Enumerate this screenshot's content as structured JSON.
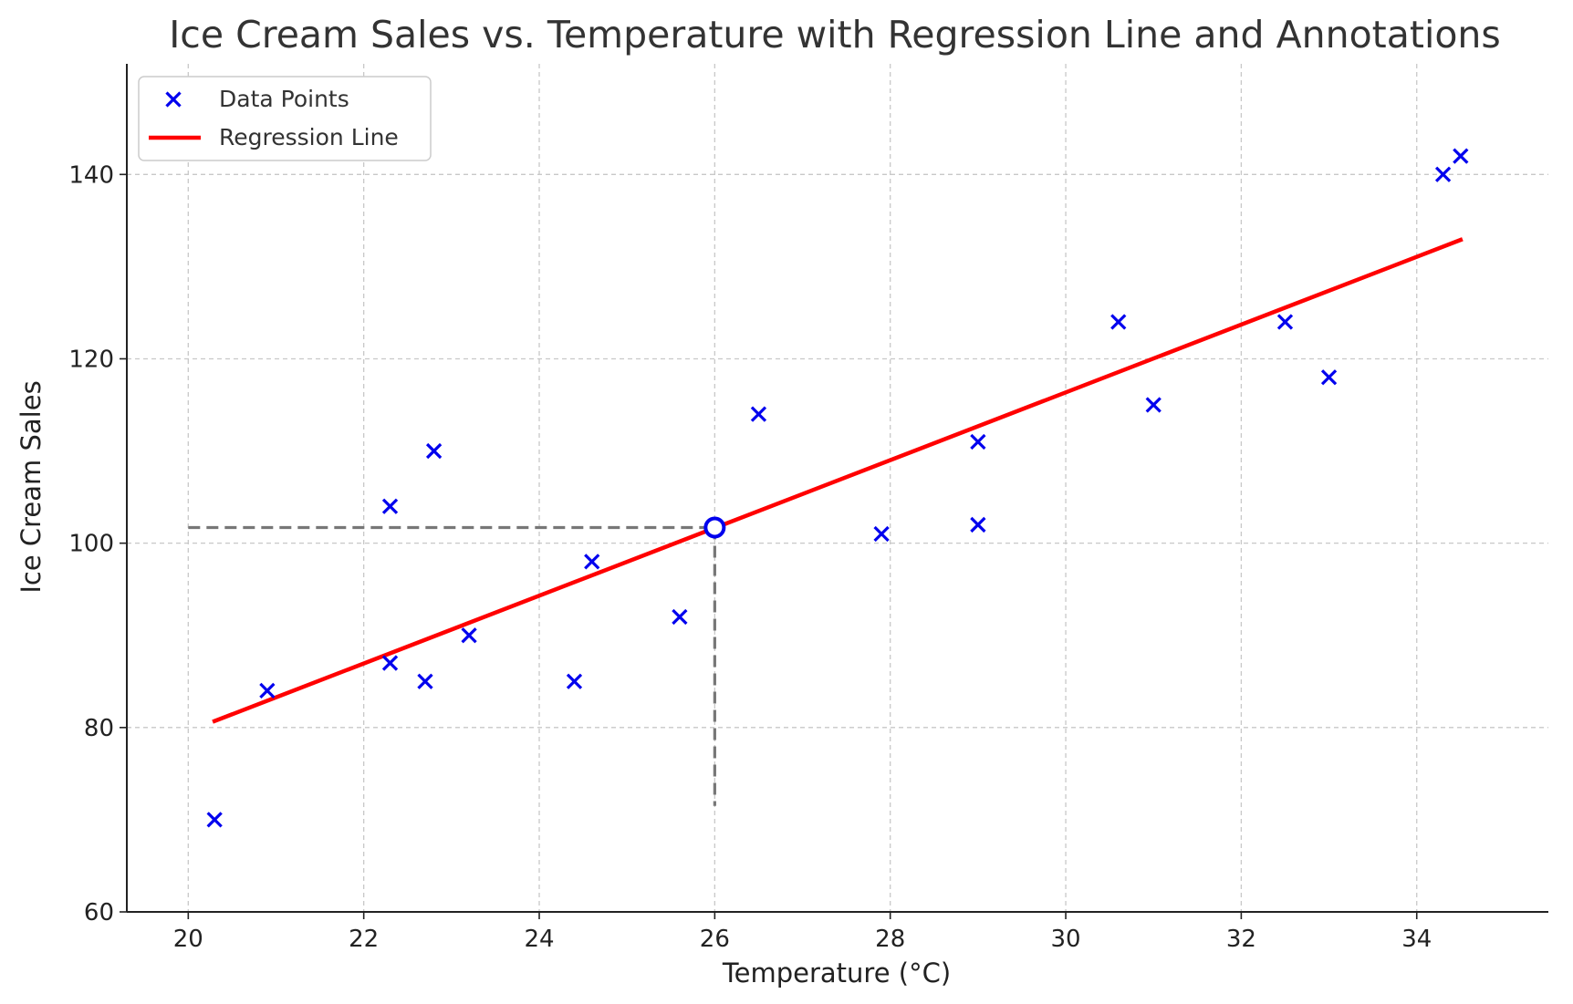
{
  "chart_data": {
    "type": "scatter",
    "title": "Ice Cream Sales vs. Temperature with Regression Line and Annotations",
    "xlabel": "Temperature (°C)",
    "ylabel": "Ice Cream Sales",
    "xlim": [
      19.3,
      35.5
    ],
    "ylim": [
      60,
      152
    ],
    "xticks": [
      20,
      22,
      24,
      26,
      28,
      30,
      32,
      34
    ],
    "yticks": [
      60,
      80,
      100,
      120,
      140
    ],
    "grid": true,
    "legend_position": "top-left",
    "series": [
      {
        "name": "Data Points",
        "kind": "scatter",
        "marker": "x",
        "color": "#0000ee",
        "points": [
          {
            "x": 20.3,
            "y": 70
          },
          {
            "x": 20.9,
            "y": 84
          },
          {
            "x": 22.3,
            "y": 104
          },
          {
            "x": 22.3,
            "y": 87
          },
          {
            "x": 22.7,
            "y": 85
          },
          {
            "x": 22.8,
            "y": 110
          },
          {
            "x": 23.2,
            "y": 90
          },
          {
            "x": 24.4,
            "y": 85
          },
          {
            "x": 24.6,
            "y": 98
          },
          {
            "x": 25.6,
            "y": 92
          },
          {
            "x": 26.5,
            "y": 114
          },
          {
            "x": 27.9,
            "y": 101
          },
          {
            "x": 29.0,
            "y": 111
          },
          {
            "x": 29.0,
            "y": 102
          },
          {
            "x": 30.6,
            "y": 124
          },
          {
            "x": 31.0,
            "y": 115
          },
          {
            "x": 32.5,
            "y": 124
          },
          {
            "x": 33.0,
            "y": 118
          },
          {
            "x": 34.3,
            "y": 140
          },
          {
            "x": 34.5,
            "y": 142
          }
        ]
      },
      {
        "name": "Regression Line",
        "kind": "line",
        "color": "#ff0000",
        "points": [
          {
            "x": 20.3,
            "y": 80.7
          },
          {
            "x": 34.5,
            "y": 132.9
          }
        ]
      }
    ],
    "annotation": {
      "point": {
        "x": 26.0,
        "y": 101.7
      },
      "color": "#0000ee",
      "guide_color": "#777777",
      "guide_x_start": 20.0,
      "guide_y_start": 71.5
    }
  }
}
